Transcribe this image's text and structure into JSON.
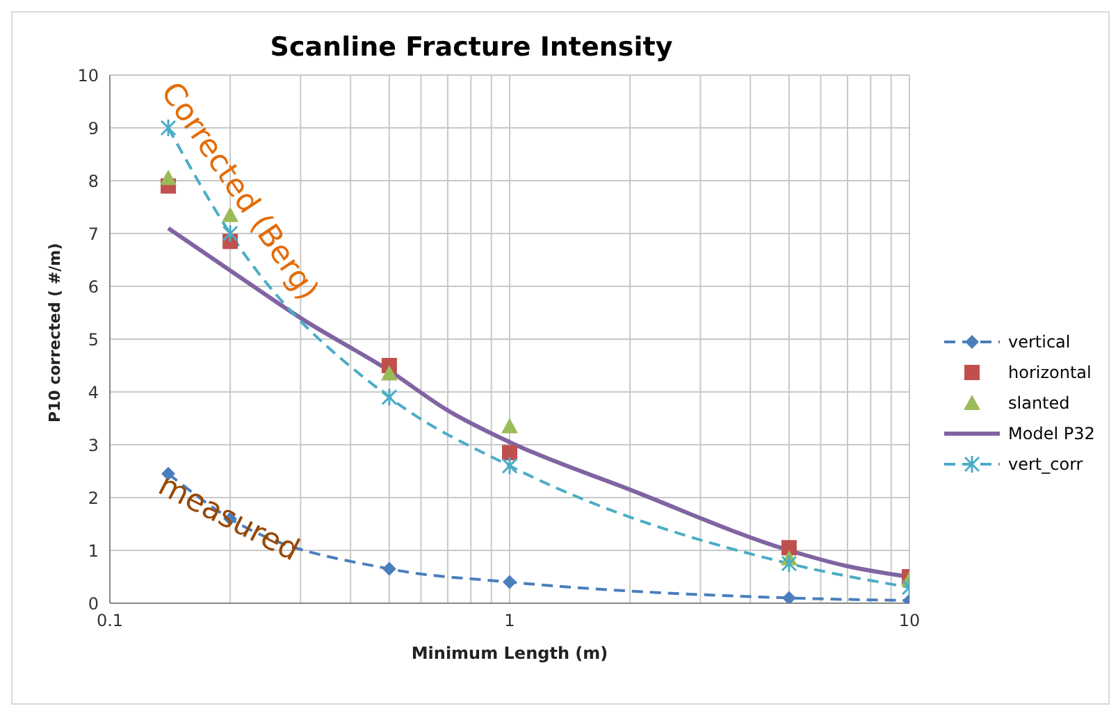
{
  "chart_data": {
    "type": "line",
    "title": "Scanline Fracture Intensity",
    "xlabel": "Minimum Length (m)",
    "ylabel": "P10 corrected ( #/m)",
    "log": "x",
    "xlim": [
      0.1,
      10
    ],
    "ylim": [
      0,
      10
    ],
    "xticks": [
      0.1,
      {
        "value": 0.2,
        "label": null
      },
      {
        "value": 0.3,
        "label": null
      },
      {
        "value": 0.4,
        "label": null
      },
      {
        "value": 0.5,
        "label": null
      },
      {
        "value": 0.6,
        "label": null
      },
      {
        "value": 0.7,
        "label": null
      },
      {
        "value": 0.8,
        "label": null
      },
      {
        "value": 0.9,
        "label": null
      },
      1,
      {
        "value": 2,
        "label": null
      },
      {
        "value": 3,
        "label": null
      },
      {
        "value": 4,
        "label": null
      },
      {
        "value": 5,
        "label": null
      },
      {
        "value": 6,
        "label": null
      },
      {
        "value": 7,
        "label": null
      },
      {
        "value": 8,
        "label": null
      },
      {
        "value": 9,
        "label": null
      },
      10
    ],
    "yticks": [
      0,
      1,
      2,
      3,
      4,
      5,
      6,
      7,
      8,
      9,
      10
    ],
    "grid": true,
    "legend": "right",
    "annotations": [
      "Corrected (Berg)",
      "measured"
    ],
    "series": [
      {
        "name": "vertical",
        "color": "#4a7ebb",
        "marker": "diamond",
        "line_style": "dashed",
        "x": [
          0.14,
          0.2,
          0.5,
          1,
          5,
          10
        ],
        "values": [
          2.45,
          1.6,
          0.65,
          0.4,
          0.1,
          0.05
        ]
      },
      {
        "name": "horizontal",
        "type": "scatter",
        "color": "#c0504d",
        "marker": "square",
        "x": [
          0.14,
          0.2,
          0.5,
          1,
          5,
          10
        ],
        "values": [
          7.9,
          6.85,
          4.5,
          2.85,
          1.05,
          0.5
        ]
      },
      {
        "name": "slanted",
        "type": "scatter",
        "color": "#9bbb59",
        "marker": "triangle",
        "x": [
          0.14,
          0.2,
          0.5,
          1,
          5,
          10
        ],
        "values": [
          8.05,
          7.35,
          4.35,
          3.35,
          0.85,
          0.45
        ]
      },
      {
        "name": "Model P32",
        "color": "#8064a2",
        "marker": "none",
        "line_style": "solid",
        "x": [
          0.14,
          0.2,
          0.3,
          0.5,
          0.7,
          1,
          2,
          5,
          7,
          10
        ],
        "values": [
          7.1,
          6.3,
          5.4,
          4.4,
          3.65,
          3.05,
          2.15,
          1.0,
          0.7,
          0.5
        ]
      },
      {
        "name": "vert_corr",
        "color": "#4bacc6",
        "marker": "cross",
        "line_style": "dashed",
        "x": [
          0.14,
          0.2,
          0.5,
          1,
          5,
          10
        ],
        "values": [
          9.0,
          7.0,
          3.9,
          2.6,
          0.75,
          0.3
        ]
      }
    ]
  }
}
